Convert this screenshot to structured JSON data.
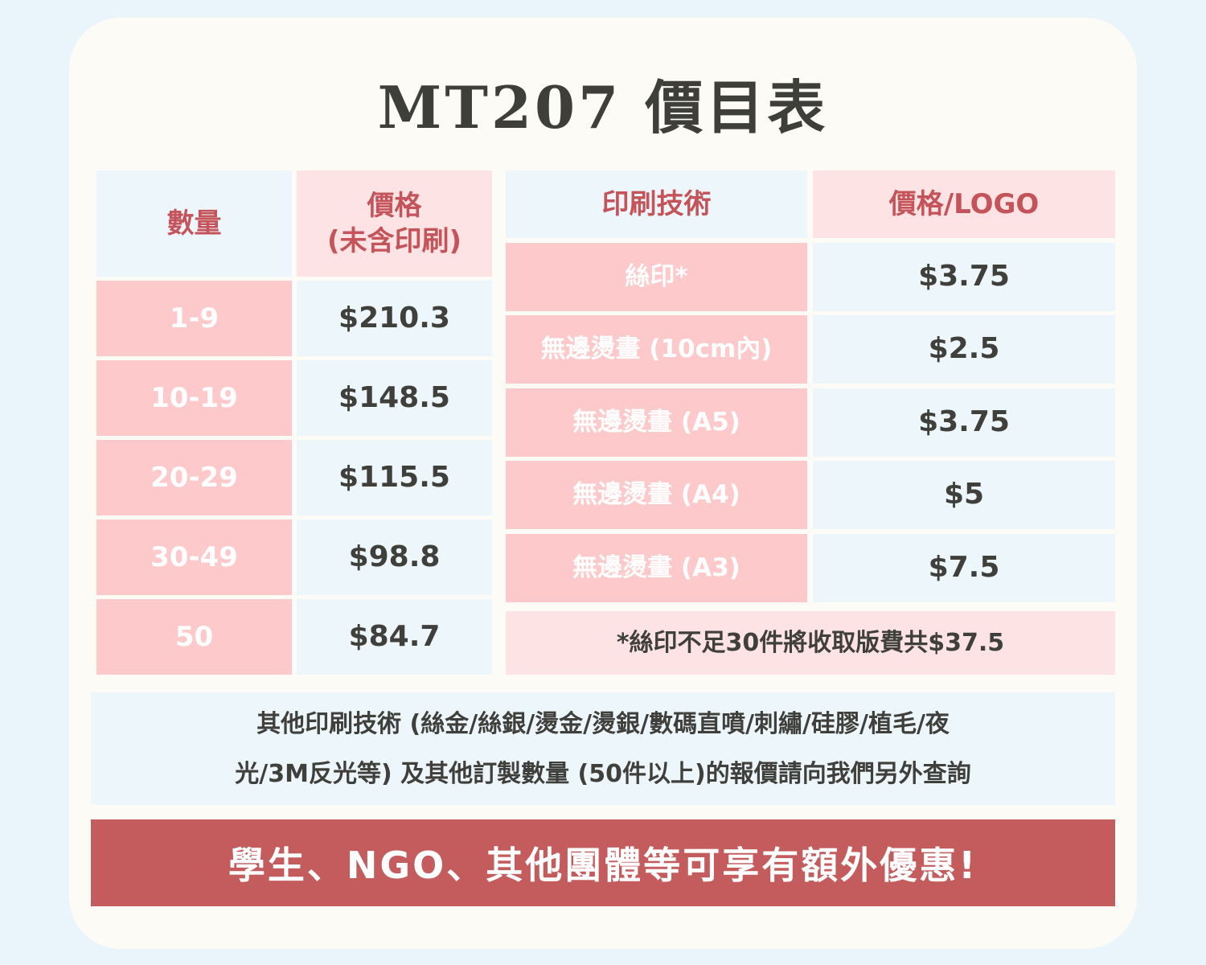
{
  "title": "MT207 價目表",
  "left_table": {
    "header_qty": "數量",
    "header_price_line1": "價格",
    "header_price_line2": "(未含印刷)",
    "rows": [
      {
        "qty": "1-9",
        "price": "$210.3"
      },
      {
        "qty": "10-19",
        "price": "$148.5"
      },
      {
        "qty": "20-29",
        "price": "$115.5"
      },
      {
        "qty": "30-49",
        "price": "$98.8"
      },
      {
        "qty": "50",
        "price": "$84.7"
      }
    ]
  },
  "right_table": {
    "header_tech": "印刷技術",
    "header_price": "價格/LOGO",
    "rows": [
      {
        "tech": "絲印*",
        "price": "$3.75"
      },
      {
        "tech": "無邊燙畫 (10cm內)",
        "price": "$2.5"
      },
      {
        "tech": "無邊燙畫 (A5)",
        "price": "$3.75"
      },
      {
        "tech": "無邊燙畫 (A4)",
        "price": "$5"
      },
      {
        "tech": "無邊燙畫 (A3)",
        "price": "$7.5"
      }
    ],
    "note": "*絲印不足30件將收取版費共$37.5"
  },
  "info": {
    "line1": "其他印刷技術 (絲金/絲銀/燙金/燙銀/數碼直噴/刺繡/硅膠/植毛/夜",
    "line2": "光/3M反光等) 及其他訂製數量 (50件以上)的報價請向我們另外查詢"
  },
  "banner": "學生、NGO、其他團體等可享有額外優惠!"
}
